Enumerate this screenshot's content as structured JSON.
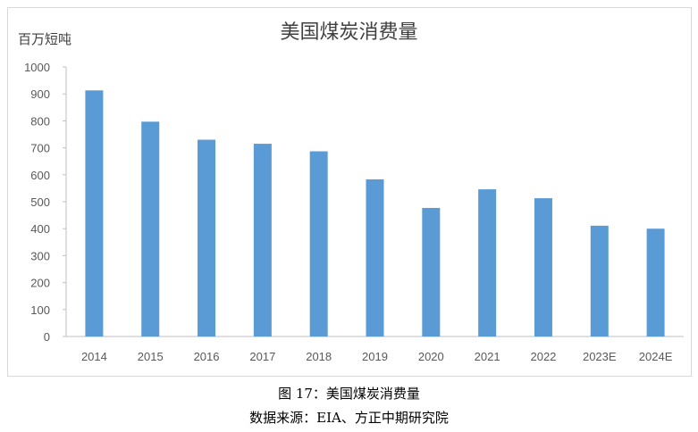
{
  "chart_data": {
    "type": "bar",
    "title": "美国煤炭消费量",
    "ylabel": "百万短吨",
    "xlabel": "",
    "categories": [
      "2014",
      "2015",
      "2016",
      "2017",
      "2018",
      "2019",
      "2020",
      "2021",
      "2022",
      "2023E",
      "2024E"
    ],
    "values": [
      913,
      797,
      730,
      715,
      687,
      583,
      477,
      546,
      513,
      411,
      400
    ],
    "ylim": [
      0,
      1000
    ],
    "yticks": [
      0,
      100,
      200,
      300,
      400,
      500,
      600,
      700,
      800,
      900,
      1000
    ],
    "grid": false,
    "bar_color": "#5b9bd5"
  },
  "caption": {
    "figure": "图 17：美国煤炭消费量",
    "source": "数据来源：EIA、方正中期研究院"
  }
}
